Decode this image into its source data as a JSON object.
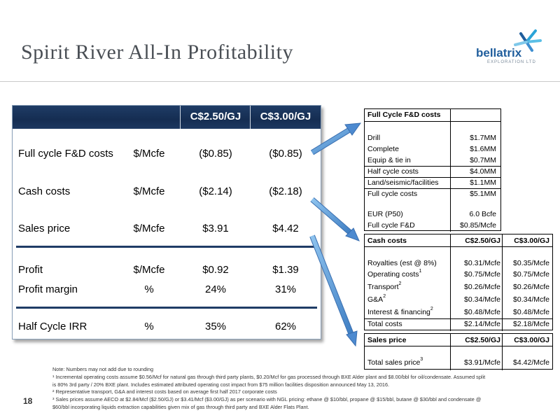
{
  "slide": {
    "title": "Spirit River All-In Profitability",
    "page_number": "18",
    "logo": {
      "word": "bellatrix",
      "sub": "EXPLORATION LTD"
    }
  },
  "main_table": {
    "headers": [
      "C$2.50/GJ",
      "C$3.00/GJ"
    ],
    "rows": [
      {
        "label": "Full cycle F&D costs",
        "unit": "$/Mcfe",
        "a": "($0.85)",
        "b": "($0.85)"
      },
      {
        "label": "Cash costs",
        "unit": "$/Mcfe",
        "a": "($2.14)",
        "b": "($2.18)"
      },
      {
        "label": "Sales price",
        "unit": "$/Mcfe",
        "a": "$3.91",
        "b": "$4.42"
      },
      {
        "label": "Profit",
        "unit": "$/Mcfe",
        "a": "$0.92",
        "b": "$1.39"
      },
      {
        "label": "Profit margin",
        "unit": "%",
        "a": "24%",
        "b": "31%"
      },
      {
        "label": "Half Cycle IRR",
        "unit": "%",
        "a": "35%",
        "b": "62%"
      }
    ]
  },
  "fd_table": {
    "title": "Full Cycle F&D costs",
    "rows": [
      {
        "label": "Drill",
        "value": "$1.7MM"
      },
      {
        "label": "Complete",
        "value": "$1.6MM"
      },
      {
        "label": "Equip & tie in",
        "value": "$0.7MM"
      },
      {
        "label": "Half cycle costs",
        "value": "$4.0MM"
      },
      {
        "label": "Land/seismic/facilities",
        "value": "$1.1MM"
      },
      {
        "label": "Full cycle costs",
        "value": "$5.1MM"
      },
      {
        "label": "EUR (P50)",
        "value": "6.0 Bcfe"
      },
      {
        "label": "Full cycle F&D",
        "value": "$0.85/Mcfe"
      }
    ]
  },
  "cash_table": {
    "title": "Cash costs",
    "headers": [
      "C$2.50/GJ",
      "C$3.00/GJ"
    ],
    "rows": [
      {
        "label": "Royalties (est @ 8%)",
        "sup": "",
        "a": "$0.31/Mcfe",
        "b": "$0.35/Mcfe"
      },
      {
        "label": "Operating costs",
        "sup": "1",
        "a": "$0.75/Mcfe",
        "b": "$0.75/Mcfe"
      },
      {
        "label": "Transport",
        "sup": "2",
        "a": "$0.26/Mcfe",
        "b": "$0.26/Mcfe"
      },
      {
        "label": "G&A",
        "sup": "2",
        "a": "$0.34/Mcfe",
        "b": "$0.34/Mcfe"
      },
      {
        "label": "Interest & financing",
        "sup": "2",
        "a": "$0.48/Mcfe",
        "b": "$0.48/Mcfe"
      },
      {
        "label": "Total costs",
        "sup": "",
        "a": "$2.14/Mcfe",
        "b": "$2.18/Mcfe"
      }
    ]
  },
  "sales_table": {
    "title": "Sales price",
    "headers": [
      "C$2.50/GJ",
      "C$3.00/GJ"
    ],
    "rows": [
      {
        "label": "Total sales price",
        "sup": "3",
        "a": "$3.91/Mcfe",
        "b": "$4.42/Mcfe"
      }
    ]
  },
  "notes": [
    "Note: Numbers may not add due to rounding",
    "¹ Incremental operating costs assume $0.56/Mcf for natural gas through third party plants, $0.20/Mcf for gas processed through BXE Alder plant and $8.00/bbl for oil/condensate.  Assumed split",
    "is 80% 3rd party / 20% BXE plant.  Includes estimated attributed operating cost impact from $75 million facilities disposition announced May 13, 2016.",
    "² Representative transport, G&A and interest costs based on average first half 2017 corporate costs",
    "³ Sales prices assume AECO at $2.84/Mcf ($2.50/GJ) or $3.41/Mcf ($3.00/GJ) as per scenario with NGL pricing: ethane @ $10/bbl, propane @ $15/bbl, butane @ $30/bbl and condensate @",
    "$60/bbl incorporating liquids extraction capabilities given mix of gas through third party and BXE Alder Flats Plant."
  ]
}
